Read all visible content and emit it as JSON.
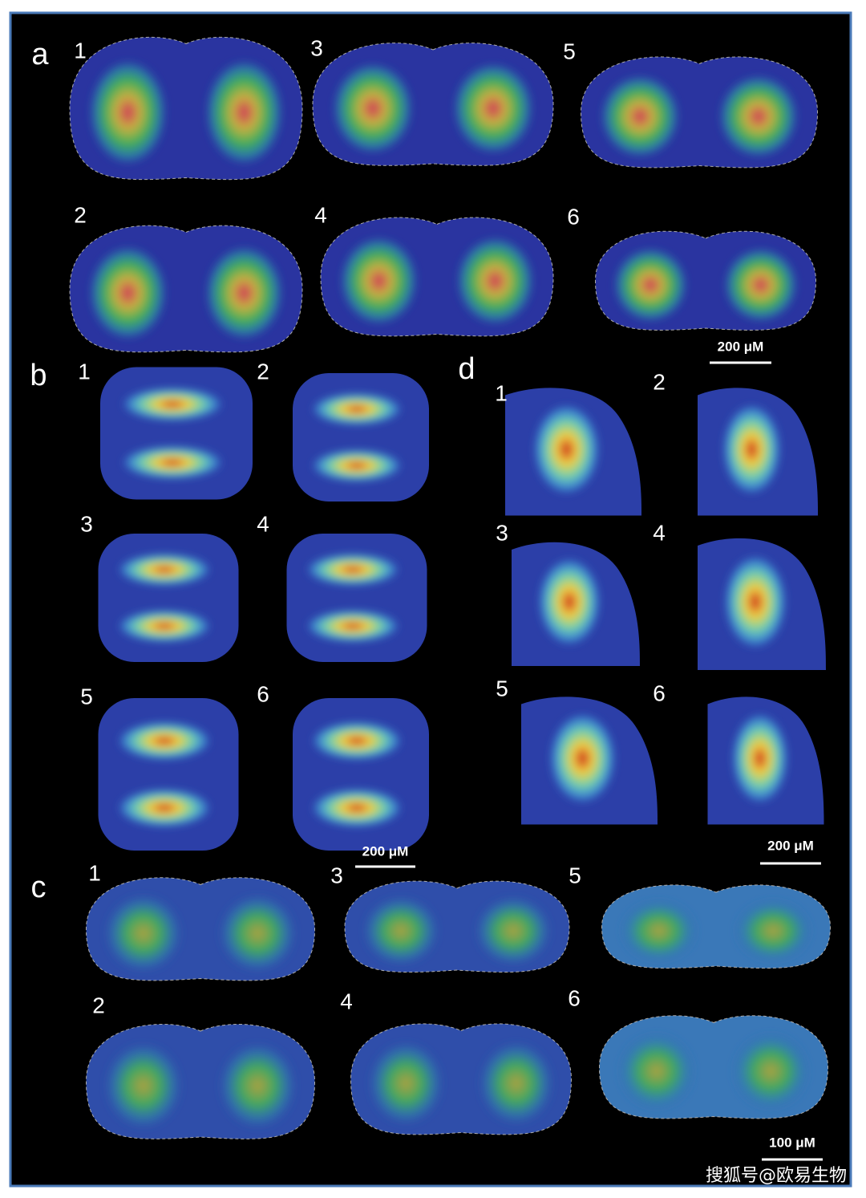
{
  "panels": [
    {
      "label": "a",
      "sections": [
        "1",
        "3",
        "5",
        "2",
        "4",
        "6"
      ],
      "scale_bar": "200 μM"
    },
    {
      "label": "b",
      "sections": [
        "1",
        "2",
        "3",
        "4",
        "5",
        "6"
      ],
      "scale_bar": "200 μM"
    },
    {
      "label": "d",
      "sections": [
        "1",
        "2",
        "3",
        "4",
        "5",
        "6"
      ],
      "scale_bar": "200 μM"
    },
    {
      "label": "c",
      "sections": [
        "1",
        "3",
        "5",
        "2",
        "4",
        "6"
      ],
      "scale_bar": "100 μM"
    }
  ],
  "watermark": "搜狐号@欧易生物"
}
